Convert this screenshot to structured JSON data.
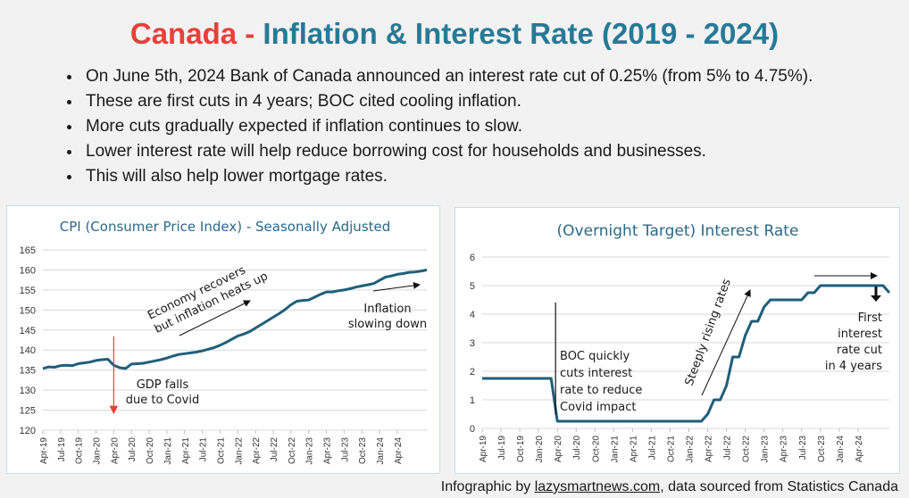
{
  "header": {
    "title_part1": "Canada",
    "title_sep": " - ",
    "title_part2": "Inflation & Interest Rate (2019 - 2024)"
  },
  "bullets": [
    "On June 5th, 2024 Bank of Canada announced an interest rate cut of 0.25% (from 5% to 4.75%).",
    "These are first cuts in 4 years; BOC cited cooling inflation.",
    "More cuts gradually expected if inflation continues to slow.",
    "Lower interest rate will help reduce borrowing cost for households and businesses.",
    "This will also help lower mortgage rates."
  ],
  "footer": {
    "prefix": "Infographic by ",
    "link": "lazysmartnews.com",
    "suffix": ", data sourced from Statistics Canada"
  },
  "colors": {
    "title_red": "#e8403a",
    "title_teal": "#277a96",
    "series": "#1f5f7a",
    "grid": "#d9d9d9",
    "covid_marker": "#e8403a"
  },
  "chart_data": [
    {
      "type": "line",
      "title": "CPI (Consumer Price Index) - Seasonally Adjusted",
      "xlabel": "",
      "ylabel": "",
      "ylim": [
        120,
        165
      ],
      "yticks": [
        120,
        125,
        130,
        135,
        140,
        145,
        150,
        155,
        160,
        165
      ],
      "grid": true,
      "x_tick_labels": [
        "Apr-19",
        "Jul-19",
        "Oct-19",
        "Jan-20",
        "Apr-20",
        "Jul-20",
        "Oct-20",
        "Jan-21",
        "Apr-21",
        "Jul-21",
        "Oct-21",
        "Jan-22",
        "Apr-22",
        "Jul-22",
        "Oct-22",
        "Jan-23",
        "Apr-23",
        "Jul-23",
        "Oct-23",
        "Jan-24",
        "Apr-24"
      ],
      "series": [
        {
          "values": [
            135.4,
            135.8,
            135.7,
            136.1,
            136.2,
            136.1,
            136.6,
            136.8,
            137.0,
            137.4,
            137.6,
            137.7,
            136.2,
            135.6,
            135.4,
            136.5,
            136.6,
            136.7,
            137.0,
            137.3,
            137.6,
            138.0,
            138.5,
            138.9,
            139.1,
            139.3,
            139.5,
            139.8,
            140.2,
            140.6,
            141.2,
            141.9,
            142.7,
            143.5,
            144.0,
            144.6,
            145.5,
            146.4,
            147.3,
            148.2,
            149.1,
            150.1,
            151.3,
            152.2,
            152.4,
            152.5,
            153.2,
            153.9,
            154.5,
            154.5,
            154.8,
            155.0,
            155.3,
            155.7,
            156.0,
            156.3,
            156.6,
            157.4,
            158.2,
            158.5,
            158.9,
            159.1,
            159.4,
            159.5,
            159.7,
            160.0
          ]
        }
      ],
      "annotations": {
        "covid": "GDP falls\ndue to Covid",
        "recovery": "Economy recovers\nbut inflation heats up",
        "slowing": "Inflation\nslowing down"
      }
    },
    {
      "type": "line",
      "title": "(Overnight Target) Interest Rate",
      "xlabel": "",
      "ylabel": "",
      "ylim": [
        0,
        6
      ],
      "yticks": [
        0,
        1,
        2,
        3,
        4,
        5,
        6
      ],
      "grid": true,
      "x_tick_labels": [
        "Apr-19",
        "Jul-19",
        "Oct-19",
        "Jan-20",
        "Apr-20",
        "Jul-20",
        "Oct-20",
        "Jan-21",
        "Apr-21",
        "Jul-21",
        "Oct-21",
        "Jan-22",
        "Apr-22",
        "Jul-22",
        "Oct-22",
        "Jan-23",
        "Apr-23",
        "Jul-23",
        "Oct-23",
        "Jan-24",
        "Apr-24"
      ],
      "series": [
        {
          "values": [
            1.75,
            1.75,
            1.75,
            1.75,
            1.75,
            1.75,
            1.75,
            1.75,
            1.75,
            1.75,
            1.75,
            1.75,
            0.25,
            0.25,
            0.25,
            0.25,
            0.25,
            0.25,
            0.25,
            0.25,
            0.25,
            0.25,
            0.25,
            0.25,
            0.25,
            0.25,
            0.25,
            0.25,
            0.25,
            0.25,
            0.25,
            0.25,
            0.25,
            0.25,
            0.25,
            0.25,
            0.5,
            1.0,
            1.0,
            1.5,
            2.5,
            2.5,
            3.25,
            3.75,
            3.75,
            4.25,
            4.5,
            4.5,
            4.5,
            4.5,
            4.5,
            4.5,
            4.75,
            4.75,
            5.0,
            5.0,
            5.0,
            5.0,
            5.0,
            5.0,
            5.0,
            5.0,
            5.0,
            5.0,
            5.0,
            4.75
          ]
        }
      ],
      "annotations": {
        "covid": "BOC quickly\ncuts interest\nrate to reduce\nCovid impact",
        "rising": "Steeply rising rates",
        "cut": "First\ninterest\nrate cut\nin 4 years"
      }
    }
  ]
}
